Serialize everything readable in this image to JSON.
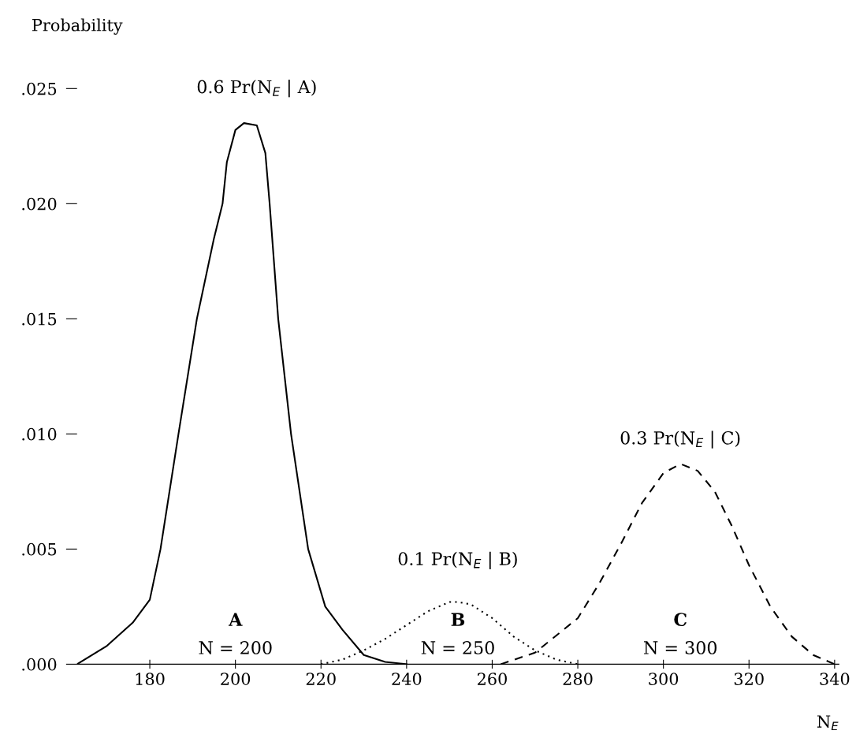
{
  "chart_data": {
    "type": "line",
    "ylabel": "Probability",
    "xlabel": "N$_{E}$",
    "xlim": [
      163,
      341
    ],
    "ylim": [
      0,
      0.025
    ],
    "xticks": [
      180,
      200,
      220,
      240,
      260,
      280,
      300,
      320,
      340
    ],
    "yticks": [
      {
        "value": 0,
        "label": ".000"
      },
      {
        "value": 0.005,
        "label": ".005"
      },
      {
        "value": 0.01,
        "label": ".010"
      },
      {
        "value": 0.015,
        "label": ".015"
      },
      {
        "value": 0.02,
        "label": ".020"
      },
      {
        "value": 0.025,
        "label": ".025"
      }
    ],
    "grid": false,
    "marker": "none",
    "series": [
      {
        "color": "#000000",
        "line_style": "solid",
        "x": [
          163,
          170,
          176,
          180,
          182.5,
          186.7,
          191,
          195,
          197,
          198,
          200,
          202,
          205,
          207,
          208,
          210,
          213,
          217,
          221,
          225,
          230,
          235,
          240
        ],
        "values": [
          0,
          0.0008,
          0.0018,
          0.0028,
          0.005,
          0.01,
          0.015,
          0.0185,
          0.02,
          0.0218,
          0.0232,
          0.0235,
          0.0234,
          0.0222,
          0.02,
          0.015,
          0.01,
          0.005,
          0.0025,
          0.0015,
          0.0004,
          0.0001,
          0
        ]
      },
      {
        "color": "#000000",
        "line_style": "dotted",
        "x": [
          220,
          225,
          230,
          235,
          240,
          245,
          250,
          252,
          255,
          260,
          265,
          270,
          275,
          280
        ],
        "values": [
          0,
          0.0002,
          0.0006,
          0.0011,
          0.0017,
          0.0023,
          0.0027,
          0.0027,
          0.0026,
          0.002,
          0.0012,
          0.0006,
          0.0002,
          0
        ]
      },
      {
        "color": "#000000",
        "line_style": "dashed",
        "x": [
          262,
          270,
          280,
          285,
          290,
          295,
          300,
          304,
          308,
          312,
          316,
          320,
          325,
          330,
          335,
          340
        ],
        "values": [
          0,
          0.0005,
          0.002,
          0.0035,
          0.0052,
          0.007,
          0.0083,
          0.0087,
          0.0084,
          0.0075,
          0.006,
          0.0043,
          0.0025,
          0.0012,
          0.0004,
          0
        ]
      }
    ],
    "annotations": [
      "0.6 Pr(N$_{E}$ | A)",
      "A",
      "N = 200",
      "0.1 Pr(N$_{E}$ | B)",
      "B",
      "N = 250",
      "0.3 Pr(N$_{E}$ | C)",
      "C",
      "N = 300"
    ]
  }
}
